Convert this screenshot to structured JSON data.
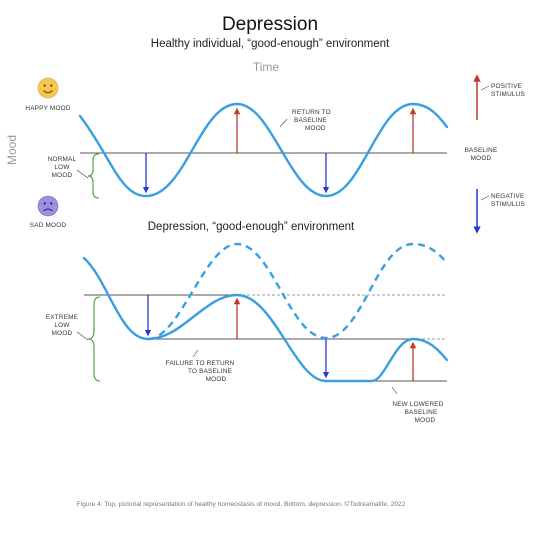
{
  "title": "Depression",
  "subtitle": "Healthy individual, “good-enough” environment",
  "time_label": "Time",
  "mood_label": "Mood",
  "top": {
    "happy_mood": "HAPPY MOOD",
    "sad_mood": "SAD MOOD",
    "normal_low_mood": [
      "NORMAL",
      "LOW",
      "MOOD"
    ],
    "return_to_baseline": [
      "RETURN TO",
      "BASELINE",
      "MOOD"
    ],
    "baseline_mood": [
      "BASELINE",
      "MOOD"
    ],
    "happy_face_icon": "smiley-face-icon",
    "sad_face_icon": "sad-face-icon"
  },
  "legend": {
    "positive_stimulus": [
      "POSITIVE",
      "STIMULUS"
    ],
    "negative_stimulus": [
      "NEGATIVE",
      "STIMULUS"
    ],
    "positive_color": "#c0392b",
    "negative_color": "#2a36c8"
  },
  "bottom": {
    "subtitle": "Depression, “good-enough” environment",
    "extreme_low_mood": [
      "EXTREME",
      "LOW",
      "MOOD"
    ],
    "failure_to_return": [
      "FAILURE TO RETURN",
      "TO BASELINE",
      "MOOD"
    ],
    "new_lowered_baseline": [
      "NEW LOWERED",
      "BASELINE",
      "MOOD"
    ]
  },
  "caption": "Figure 4: Top, pictorial representation of healthy homeostasis of mood. Bottom, depression. ©Todreamalife, 2022",
  "colors": {
    "wave": "#3a9fe0",
    "brace": "#5ab04b",
    "face": "#f2c94c",
    "sad_face": "#9b8fe0"
  }
}
